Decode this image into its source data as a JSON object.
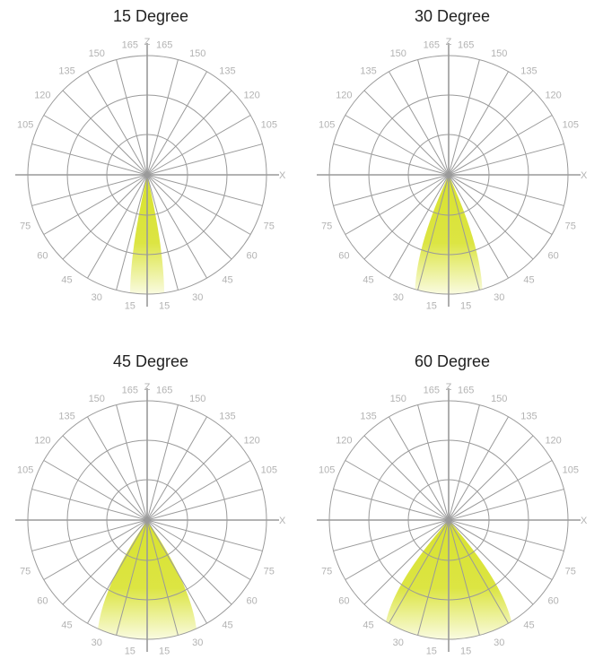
{
  "diagrams": [
    {
      "title": "15 Degree",
      "beam_angle_deg": 15
    },
    {
      "title": "30 Degree",
      "beam_angle_deg": 30
    },
    {
      "title": "45 Degree",
      "beam_angle_deg": 45
    },
    {
      "title": "60 Degree",
      "beam_angle_deg": 60
    }
  ],
  "axis_labels": {
    "z": "Z",
    "x": "X"
  },
  "angle_labels": {
    "left": [
      "165",
      "150",
      "135",
      "120",
      "105",
      "75",
      "60",
      "45",
      "30",
      "15"
    ],
    "right": [
      "165",
      "150",
      "135",
      "120",
      "105",
      "75",
      "60",
      "45",
      "30",
      "15"
    ]
  },
  "colors": {
    "grid": "#9a9a9a",
    "beam": "#d8e22e",
    "label": "#b3b3b3",
    "title": "#222222"
  }
}
